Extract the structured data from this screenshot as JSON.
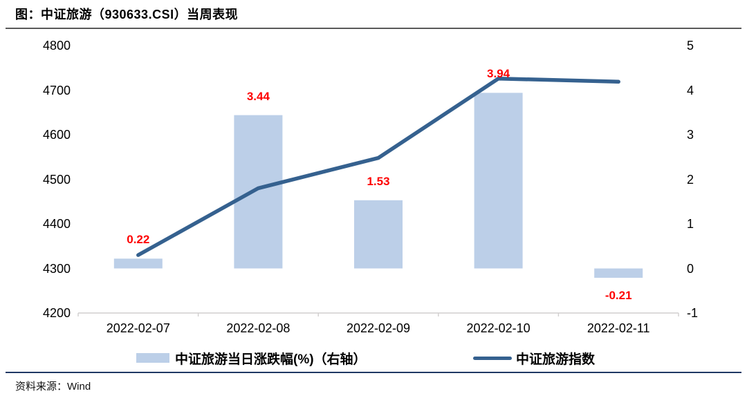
{
  "page": {
    "title": "图：中证旅游（930633.CSI）当周表现",
    "source": "资料来源：Wind"
  },
  "colors": {
    "bar": "#bccfe8",
    "line": "#35618f",
    "data_label": "#fe0000",
    "axis": "#d0cece",
    "top_rule": "#595959",
    "bottom_rule": "#1f3864",
    "text": "#000000"
  },
  "legend": [
    {
      "type": "bar",
      "label": "中证旅游当日涨跌幅(%)（右轴）"
    },
    {
      "type": "line",
      "label": "中证旅游指数"
    }
  ],
  "chart_data": {
    "type": "bar+line combo",
    "title": "中证旅游（930633.CSI）当周表现",
    "categories": [
      "2022-02-07",
      "2022-02-08",
      "2022-02-09",
      "2022-02-10",
      "2022-02-11"
    ],
    "series": [
      {
        "name": "中证旅游当日涨跌幅(%)（右轴）",
        "type": "bar",
        "axis": "right",
        "values": [
          0.22,
          3.44,
          1.53,
          3.94,
          -0.21
        ],
        "data_labels": [
          "0.22",
          "3.44",
          "1.53",
          "3.94",
          "-0.21"
        ]
      },
      {
        "name": "中证旅游指数",
        "type": "line",
        "axis": "left",
        "values": [
          4330,
          4480,
          4548,
          4726,
          4719
        ]
      }
    ],
    "left_axis": {
      "min": 4200,
      "max": 4800,
      "ticks": [
        4800,
        4700,
        4600,
        4500,
        4400,
        4300,
        4200
      ]
    },
    "right_axis": {
      "min": -1,
      "max": 5,
      "ticks": [
        5,
        4,
        3,
        2,
        1,
        0,
        -1
      ]
    },
    "grid": false,
    "legend_position": "bottom",
    "data_label_color": "#fe0000"
  }
}
